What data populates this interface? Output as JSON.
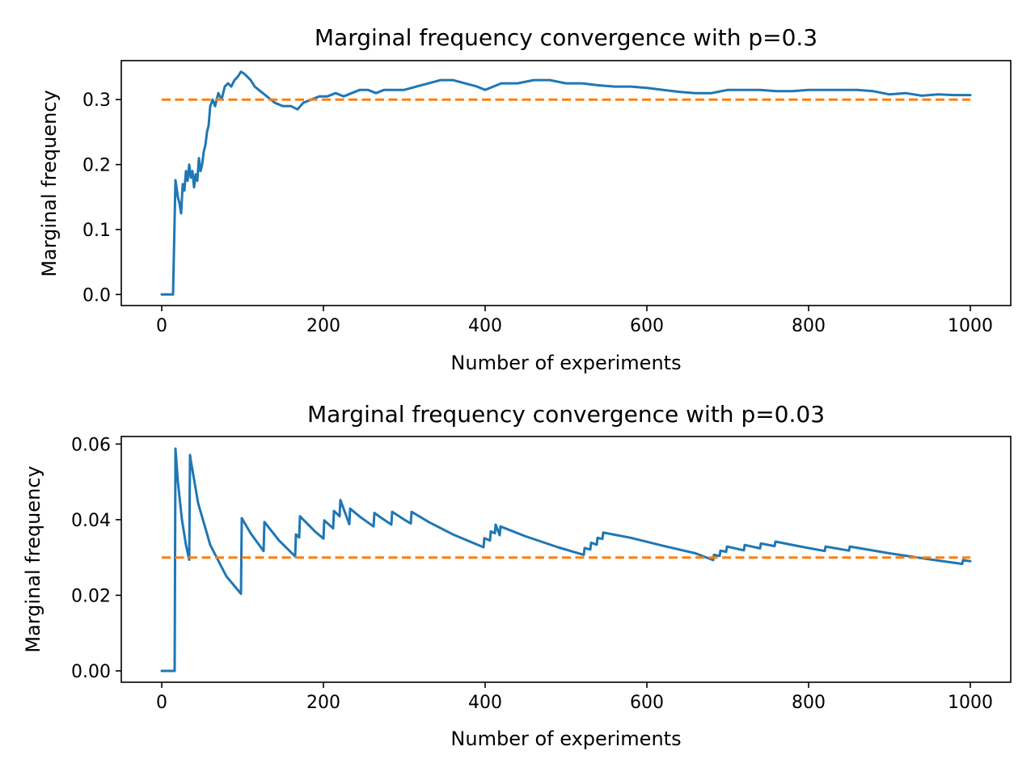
{
  "chart_data": [
    {
      "type": "line",
      "title": "Marginal frequency convergence with p=0.3",
      "xlabel": "Number of experiments",
      "ylabel": "Marginal frequency",
      "xlim": [
        -50,
        1050
      ],
      "ylim": [
        -0.017,
        0.36
      ],
      "xticks": [
        0,
        200,
        400,
        600,
        800,
        1000
      ],
      "yticks": [
        0.0,
        0.1,
        0.2,
        0.3
      ],
      "ytick_labels": [
        "0.0",
        "0.1",
        "0.2",
        "0.3"
      ],
      "grid": false,
      "colors": {
        "series": "#1f77b4",
        "reference": "#ff7f0e"
      },
      "series": [
        {
          "style": "solid",
          "color": "#1f77b4",
          "x": [
            0,
            14,
            17,
            20,
            22,
            24,
            26,
            28,
            30,
            32,
            34,
            36,
            38,
            40,
            42,
            44,
            46,
            48,
            50,
            52,
            54,
            56,
            58,
            60,
            63,
            66,
            70,
            74,
            78,
            82,
            86,
            90,
            94,
            98,
            102,
            106,
            110,
            115,
            120,
            125,
            130,
            135,
            140,
            150,
            160,
            168,
            175,
            185,
            195,
            205,
            215,
            225,
            235,
            245,
            255,
            265,
            275,
            285,
            300,
            315,
            330,
            345,
            360,
            375,
            390,
            400,
            410,
            420,
            440,
            460,
            480,
            500,
            520,
            540,
            560,
            580,
            600,
            620,
            640,
            660,
            680,
            700,
            720,
            740,
            760,
            780,
            800,
            820,
            840,
            860,
            880,
            900,
            920,
            940,
            960,
            980,
            1000
          ],
          "y": [
            0.0,
            0.0,
            0.176,
            0.15,
            0.14,
            0.125,
            0.17,
            0.16,
            0.19,
            0.175,
            0.2,
            0.18,
            0.19,
            0.165,
            0.185,
            0.175,
            0.21,
            0.19,
            0.2,
            0.22,
            0.23,
            0.25,
            0.26,
            0.29,
            0.3,
            0.29,
            0.31,
            0.3,
            0.32,
            0.325,
            0.32,
            0.33,
            0.335,
            0.343,
            0.34,
            0.335,
            0.33,
            0.32,
            0.315,
            0.31,
            0.305,
            0.3,
            0.295,
            0.29,
            0.29,
            0.285,
            0.295,
            0.3,
            0.305,
            0.305,
            0.31,
            0.305,
            0.31,
            0.315,
            0.315,
            0.31,
            0.315,
            0.315,
            0.315,
            0.32,
            0.325,
            0.33,
            0.33,
            0.325,
            0.32,
            0.315,
            0.32,
            0.325,
            0.325,
            0.33,
            0.33,
            0.325,
            0.325,
            0.322,
            0.32,
            0.32,
            0.318,
            0.315,
            0.312,
            0.31,
            0.31,
            0.315,
            0.315,
            0.315,
            0.313,
            0.313,
            0.315,
            0.315,
            0.315,
            0.315,
            0.313,
            0.308,
            0.31,
            0.306,
            0.308,
            0.307,
            0.307
          ]
        },
        {
          "style": "dashed",
          "color": "#ff7f0e",
          "x": [
            0,
            1000
          ],
          "y": [
            0.3,
            0.3
          ]
        }
      ]
    },
    {
      "type": "line",
      "title": "Marginal frequency convergence with p=0.03",
      "xlabel": "Number of experiments",
      "ylabel": "Marginal frequency",
      "xlim": [
        -50,
        1050
      ],
      "ylim": [
        -0.003,
        0.062
      ],
      "xticks": [
        0,
        200,
        400,
        600,
        800,
        1000
      ],
      "yticks": [
        0.0,
        0.02,
        0.04,
        0.06
      ],
      "ytick_labels": [
        "0.00",
        "0.02",
        "0.04",
        "0.06"
      ],
      "grid": false,
      "colors": {
        "series": "#1f77b4",
        "reference": "#ff7f0e"
      },
      "series": [
        {
          "style": "solid",
          "color": "#1f77b4",
          "x": [
            0,
            16,
            17,
            20,
            25,
            30,
            34,
            35,
            36,
            45,
            60,
            80,
            98,
            99,
            110,
            126,
            127,
            145,
            165,
            166,
            170,
            171,
            190,
            200,
            201,
            212,
            213,
            220,
            221,
            232,
            233,
            245,
            262,
            263,
            270,
            284,
            285,
            300,
            308,
            309,
            330,
            360,
            398,
            399,
            406,
            407,
            412,
            413,
            418,
            419,
            450,
            490,
            522,
            523,
            530,
            531,
            538,
            539,
            545,
            546,
            580,
            620,
            660,
            682,
            683,
            690,
            691,
            698,
            699,
            720,
            721,
            740,
            741,
            758,
            759,
            790,
            820,
            821,
            850,
            851,
            900,
            950,
            990,
            991,
            1000
          ],
          "y": [
            0.0,
            0.0,
            0.0588,
            0.05,
            0.04,
            0.0333,
            0.0294,
            0.0571,
            0.0556,
            0.0444,
            0.0333,
            0.025,
            0.0204,
            0.0404,
            0.0364,
            0.0317,
            0.0394,
            0.0345,
            0.0303,
            0.0361,
            0.0353,
            0.0409,
            0.0368,
            0.035,
            0.0398,
            0.0377,
            0.0423,
            0.0409,
            0.0452,
            0.0388,
            0.0429,
            0.0408,
            0.0382,
            0.0418,
            0.0407,
            0.0387,
            0.0421,
            0.04,
            0.039,
            0.0421,
            0.0394,
            0.0361,
            0.0327,
            0.0351,
            0.0345,
            0.0369,
            0.0364,
            0.0387,
            0.0359,
            0.0382,
            0.0356,
            0.0327,
            0.0307,
            0.0325,
            0.0321,
            0.0339,
            0.0334,
            0.0352,
            0.0349,
            0.0366,
            0.0352,
            0.0331,
            0.0311,
            0.0293,
            0.0307,
            0.0304,
            0.0318,
            0.0315,
            0.0329,
            0.0319,
            0.0333,
            0.0324,
            0.0337,
            0.033,
            0.0342,
            0.0329,
            0.0317,
            0.0329,
            0.0318,
            0.0329,
            0.0311,
            0.0295,
            0.0283,
            0.0293,
            0.029
          ]
        },
        {
          "style": "dashed",
          "color": "#ff7f0e",
          "x": [
            0,
            1000
          ],
          "y": [
            0.03,
            0.03
          ]
        }
      ]
    }
  ]
}
